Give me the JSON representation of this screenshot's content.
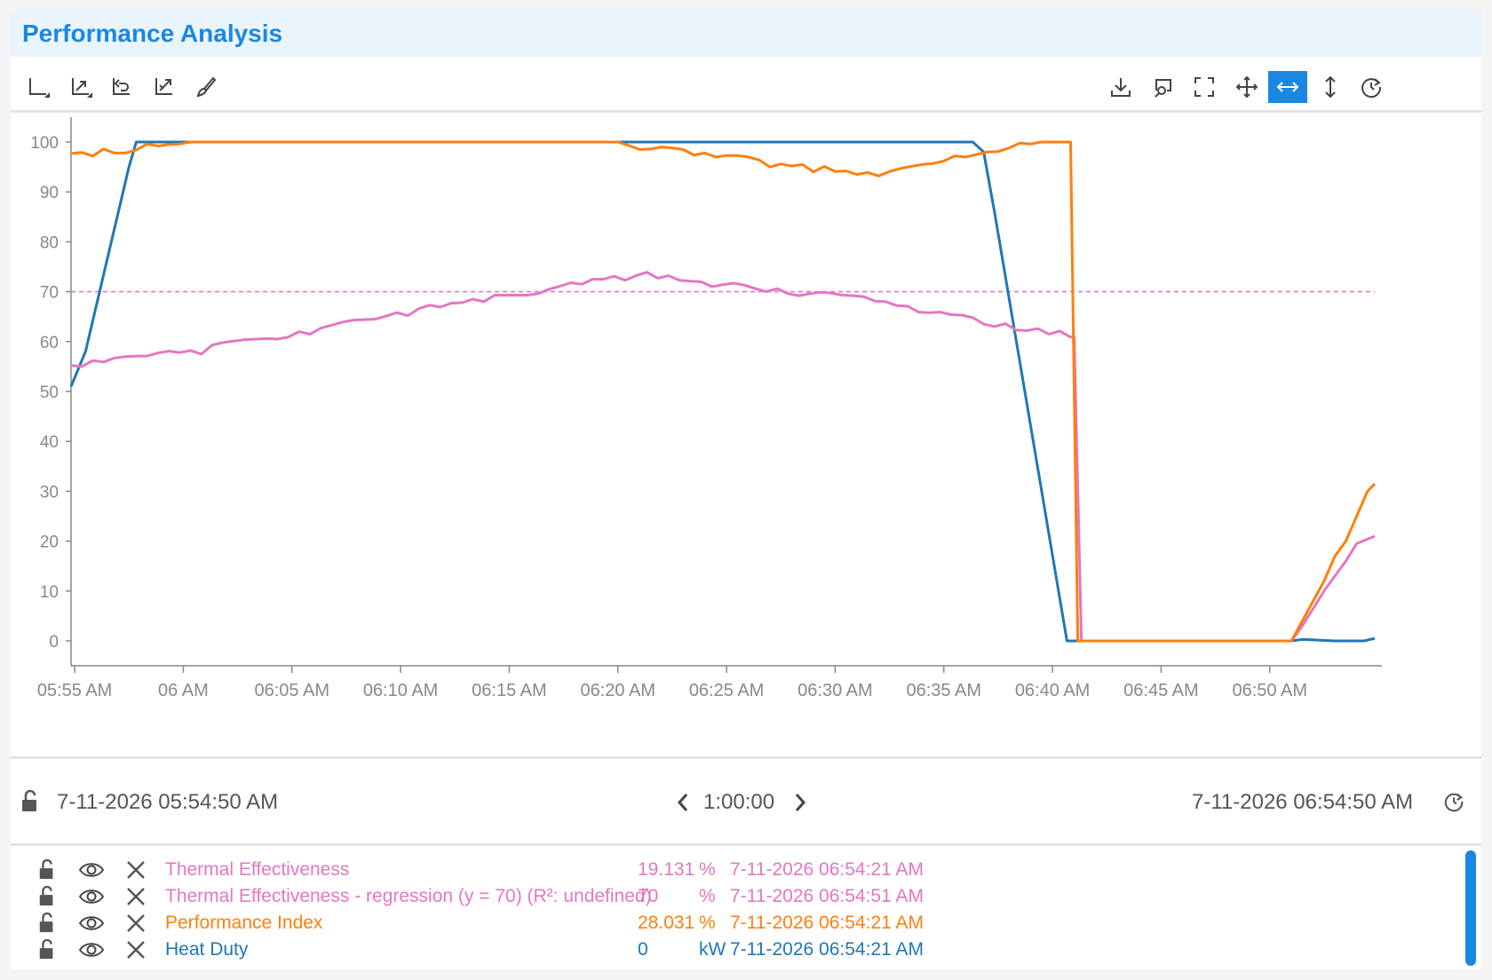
{
  "panel": {
    "title": "Performance Analysis"
  },
  "toolbar": {
    "left_tools": [
      "axis-icon",
      "zoom-extent-icon",
      "undo-zoom-icon",
      "trend-icon",
      "brush-icon"
    ],
    "right_tools": [
      "download-icon",
      "zoom-search-icon",
      "fullscreen-icon",
      "pan-icon",
      "horizontal-zoom-icon",
      "vertical-zoom-icon",
      "refresh-icon"
    ],
    "active_tool": "horizontal-zoom-icon",
    "active_color": "#1a88e0"
  },
  "chart_data": {
    "type": "line",
    "xlabel": "",
    "ylabel": "",
    "ylim": [
      0,
      100
    ],
    "y_ticks": [
      "100",
      "90",
      "80",
      "70",
      "60",
      "50",
      "40",
      "30",
      "20",
      "10",
      "0"
    ],
    "x_ticks": [
      "05:55 AM",
      "06 AM",
      "06:05 AM",
      "06:10 AM",
      "06:15 AM",
      "06:20 AM",
      "06:25 AM",
      "06:30 AM",
      "06:35 AM",
      "06:40 AM",
      "06:45 AM",
      "06:50 AM"
    ],
    "x_range": [
      "05:54:50 AM",
      "06:54:50 AM"
    ],
    "grid": false,
    "series": [
      {
        "name": "Heat Duty",
        "color": "#1f77b4",
        "points": [
          [
            "05:54:50",
            51
          ],
          [
            "05:55:30",
            58
          ],
          [
            "05:57:30",
            95
          ],
          [
            "05:57:50",
            100
          ],
          [
            "06:36:20",
            100
          ],
          [
            "06:36:50",
            98
          ],
          [
            "06:37:20",
            86
          ],
          [
            "06:40:40",
            0
          ],
          [
            "06:41:10",
            0
          ],
          [
            "06:51:00",
            0
          ],
          [
            "06:51:30",
            0.3
          ],
          [
            "06:53:00",
            0
          ],
          [
            "06:54:20",
            0
          ],
          [
            "06:54:50",
            0.5
          ]
        ]
      },
      {
        "name": "Performance Index",
        "color": "#ff7f0e",
        "points": [
          [
            "05:54:50",
            97.7
          ],
          [
            "05:55:20",
            97.9
          ],
          [
            "05:55:50",
            97.2
          ],
          [
            "05:56:20",
            98.6
          ],
          [
            "05:56:50",
            97.8
          ],
          [
            "05:57:20",
            97.8
          ],
          [
            "05:57:50",
            98.4
          ],
          [
            "05:58:20",
            99.6
          ],
          [
            "05:58:50",
            99.2
          ],
          [
            "05:59:20",
            99.5
          ],
          [
            "05:59:50",
            99.6
          ],
          [
            "06:00:20",
            100
          ],
          [
            "06:20:00",
            100
          ],
          [
            "06:20:30",
            99.3
          ],
          [
            "06:21:00",
            98.5
          ],
          [
            "06:21:30",
            98.6
          ],
          [
            "06:22:00",
            99.0
          ],
          [
            "06:22:30",
            98.8
          ],
          [
            "06:23:00",
            98.5
          ],
          [
            "06:23:30",
            97.4
          ],
          [
            "06:24:00",
            97.8
          ],
          [
            "06:24:30",
            97.0
          ],
          [
            "06:25:00",
            97.3
          ],
          [
            "06:25:30",
            97.3
          ],
          [
            "06:26:00",
            97.0
          ],
          [
            "06:26:30",
            96.4
          ],
          [
            "06:27:00",
            95.0
          ],
          [
            "06:27:30",
            95.6
          ],
          [
            "06:28:00",
            95.2
          ],
          [
            "06:28:30",
            95.5
          ],
          [
            "06:29:00",
            94.0
          ],
          [
            "06:29:30",
            95.1
          ],
          [
            "06:30:00",
            94.1
          ],
          [
            "06:30:30",
            94.2
          ],
          [
            "06:31:00",
            93.5
          ],
          [
            "06:31:30",
            93.9
          ],
          [
            "06:32:00",
            93.2
          ],
          [
            "06:32:30",
            94.1
          ],
          [
            "06:33:00",
            94.7
          ],
          [
            "06:33:30",
            95.1
          ],
          [
            "06:34:00",
            95.5
          ],
          [
            "06:34:30",
            95.7
          ],
          [
            "06:35:00",
            96.2
          ],
          [
            "06:35:30",
            97.2
          ],
          [
            "06:36:00",
            97.0
          ],
          [
            "06:36:30",
            97.5
          ],
          [
            "06:37:00",
            98.0
          ],
          [
            "06:37:30",
            98.1
          ],
          [
            "06:38:00",
            98.8
          ],
          [
            "06:38:30",
            99.8
          ],
          [
            "06:39:00",
            99.6
          ],
          [
            "06:39:30",
            100
          ],
          [
            "06:40:50",
            100
          ],
          [
            "06:41:10",
            0
          ],
          [
            "06:51:00",
            0
          ],
          [
            "06:51:30",
            4
          ],
          [
            "06:52:00",
            8
          ],
          [
            "06:52:30",
            12
          ],
          [
            "06:53:00",
            17
          ],
          [
            "06:53:30",
            20
          ],
          [
            "06:54:00",
            25
          ],
          [
            "06:54:30",
            30
          ],
          [
            "06:54:50",
            31.5
          ]
        ]
      },
      {
        "name": "Thermal Effectiveness",
        "color": "#e377c2",
        "points": [
          [
            "05:54:50",
            55.2
          ],
          [
            "05:55:20",
            55.0
          ],
          [
            "05:55:50",
            56.2
          ],
          [
            "05:56:20",
            55.9
          ],
          [
            "05:56:50",
            56.7
          ],
          [
            "05:57:20",
            57.0
          ],
          [
            "05:57:50",
            57.1
          ],
          [
            "05:58:20",
            57.1
          ],
          [
            "05:58:50",
            57.7
          ],
          [
            "05:59:20",
            58.1
          ],
          [
            "05:59:50",
            57.8
          ],
          [
            "06:00:20",
            58.2
          ],
          [
            "06:00:50",
            57.5
          ],
          [
            "06:01:20",
            59.3
          ],
          [
            "06:01:50",
            59.8
          ],
          [
            "06:02:20",
            60.1
          ],
          [
            "06:02:50",
            60.4
          ],
          [
            "06:03:20",
            60.5
          ],
          [
            "06:03:50",
            60.6
          ],
          [
            "06:04:20",
            60.5
          ],
          [
            "06:04:50",
            60.9
          ],
          [
            "06:05:20",
            62.0
          ],
          [
            "06:05:50",
            61.5
          ],
          [
            "06:06:20",
            62.7
          ],
          [
            "06:06:50",
            63.3
          ],
          [
            "06:07:20",
            63.9
          ],
          [
            "06:07:50",
            64.3
          ],
          [
            "06:08:20",
            64.4
          ],
          [
            "06:08:50",
            64.5
          ],
          [
            "06:09:20",
            65.1
          ],
          [
            "06:09:50",
            65.8
          ],
          [
            "06:10:20",
            65.2
          ],
          [
            "06:10:50",
            66.6
          ],
          [
            "06:11:20",
            67.3
          ],
          [
            "06:11:50",
            66.9
          ],
          [
            "06:12:20",
            67.7
          ],
          [
            "06:12:50",
            67.8
          ],
          [
            "06:13:20",
            68.5
          ],
          [
            "06:13:50",
            68.0
          ],
          [
            "06:14:20",
            69.3
          ],
          [
            "06:14:50",
            69.3
          ],
          [
            "06:15:20",
            69.3
          ],
          [
            "06:15:50",
            69.3
          ],
          [
            "06:16:20",
            69.6
          ],
          [
            "06:16:50",
            70.5
          ],
          [
            "06:17:20",
            71.1
          ],
          [
            "06:17:50",
            71.8
          ],
          [
            "06:18:20",
            71.5
          ],
          [
            "06:18:50",
            72.5
          ],
          [
            "06:19:20",
            72.5
          ],
          [
            "06:19:50",
            73.1
          ],
          [
            "06:20:20",
            72.3
          ],
          [
            "06:20:50",
            73.2
          ],
          [
            "06:21:20",
            73.9
          ],
          [
            "06:21:50",
            72.7
          ],
          [
            "06:22:20",
            73.2
          ],
          [
            "06:22:50",
            72.3
          ],
          [
            "06:23:20",
            72.1
          ],
          [
            "06:23:50",
            72.0
          ],
          [
            "06:24:20",
            71.0
          ],
          [
            "06:24:50",
            71.4
          ],
          [
            "06:25:20",
            71.7
          ],
          [
            "06:25:50",
            71.3
          ],
          [
            "06:26:20",
            70.6
          ],
          [
            "06:26:50",
            70.0
          ],
          [
            "06:27:20",
            70.6
          ],
          [
            "06:27:50",
            69.6
          ],
          [
            "06:28:20",
            69.2
          ],
          [
            "06:28:50",
            69.6
          ],
          [
            "06:29:20",
            69.9
          ],
          [
            "06:29:50",
            69.7
          ],
          [
            "06:30:20",
            69.3
          ],
          [
            "06:30:50",
            69.2
          ],
          [
            "06:31:20",
            69.0
          ],
          [
            "06:31:50",
            68.1
          ],
          [
            "06:32:20",
            68.0
          ],
          [
            "06:32:50",
            67.2
          ],
          [
            "06:33:20",
            67.1
          ],
          [
            "06:33:50",
            65.9
          ],
          [
            "06:34:20",
            65.8
          ],
          [
            "06:34:50",
            65.9
          ],
          [
            "06:35:20",
            65.4
          ],
          [
            "06:35:50",
            65.3
          ],
          [
            "06:36:20",
            64.8
          ],
          [
            "06:36:50",
            63.5
          ],
          [
            "06:37:20",
            63.0
          ],
          [
            "06:37:50",
            63.6
          ],
          [
            "06:38:20",
            62.3
          ],
          [
            "06:38:50",
            62.2
          ],
          [
            "06:39:20",
            62.6
          ],
          [
            "06:39:50",
            61.5
          ],
          [
            "06:40:20",
            62.1
          ],
          [
            "06:40:50",
            60.9
          ],
          [
            "06:41:00",
            60.9
          ],
          [
            "06:41:20",
            0
          ],
          [
            "06:51:00",
            0
          ],
          [
            "06:51:30",
            3
          ],
          [
            "06:52:00",
            6.5
          ],
          [
            "06:52:30",
            10
          ],
          [
            "06:53:00",
            13
          ],
          [
            "06:53:30",
            16
          ],
          [
            "06:54:00",
            19.5
          ],
          [
            "06:54:50",
            21
          ]
        ]
      },
      {
        "name": "Thermal Effectiveness - regression (y = 70) (R²: undefined)",
        "color": "#e377c2",
        "dashed": true,
        "points": [
          [
            "05:54:50",
            70
          ],
          [
            "06:54:50",
            70
          ]
        ]
      }
    ]
  },
  "time_range": {
    "start": "7-11-2026 05:54:50 AM",
    "duration": "1:00:00",
    "end": "7-11-2026 06:54:50 AM"
  },
  "legend": [
    {
      "name": "Thermal Effectiveness",
      "value": "19.131",
      "unit": "%",
      "time": "7-11-2026 06:54:21 AM",
      "color": "#e377c2"
    },
    {
      "name": "Thermal Effectiveness - regression (y = 70) (R²: undefined)",
      "value": "70",
      "unit": "%",
      "time": "7-11-2026 06:54:51 AM",
      "color": "#e377c2"
    },
    {
      "name": "Performance Index",
      "value": "28.031",
      "unit": "%",
      "time": "7-11-2026 06:54:21 AM",
      "color": "#ff7f0e"
    },
    {
      "name": "Heat Duty",
      "value": "0",
      "unit": "kW",
      "time": "7-11-2026 06:54:21 AM",
      "color": "#1f77b4"
    }
  ]
}
